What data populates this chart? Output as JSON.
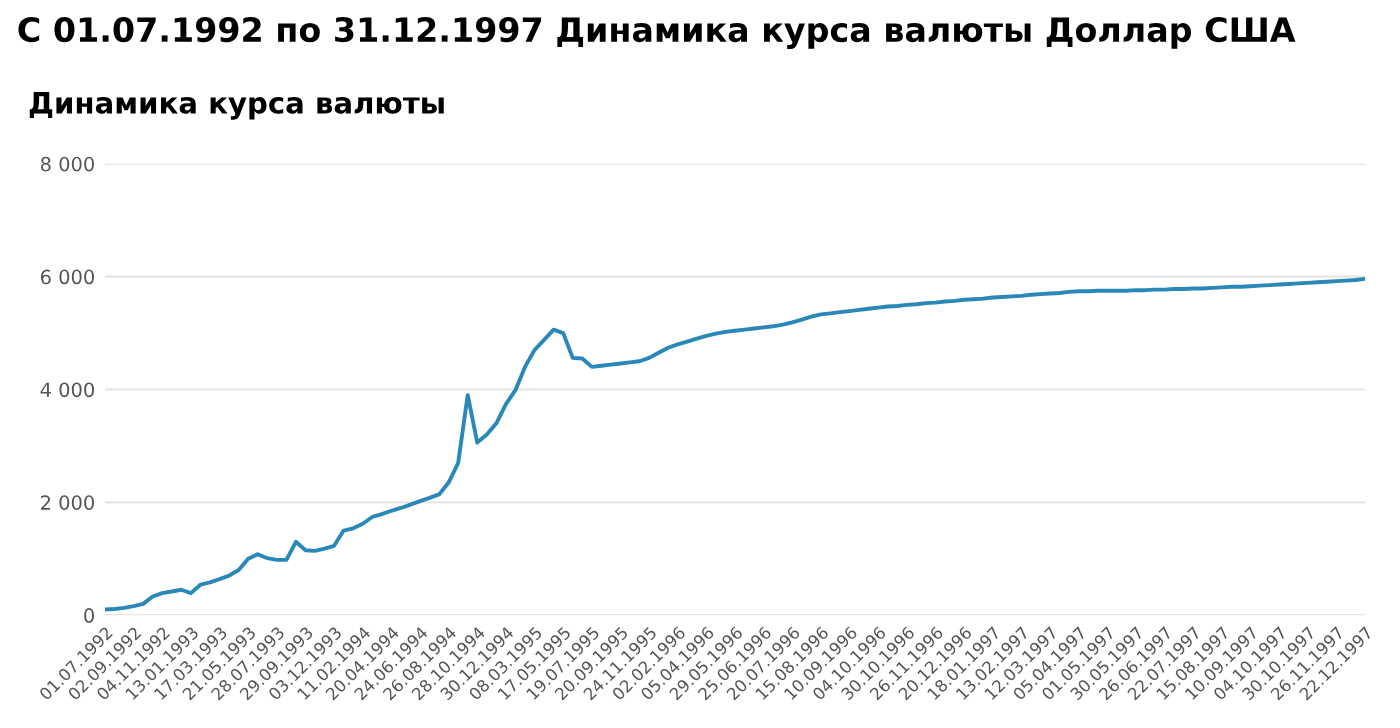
{
  "chart_data": {
    "type": "line",
    "title": "С 01.07.1992 по 31.12.1997 Динамика курса валюты Доллар США",
    "subtitle": "Динамика курса валюты",
    "categories": [
      "01.07.1992",
      null,
      null,
      "02.09.1992",
      null,
      null,
      "04.11.1992",
      null,
      null,
      "13.01.1993",
      null,
      null,
      "17.03.1993",
      null,
      null,
      "21.05.1993",
      null,
      null,
      "28.07.1993",
      null,
      null,
      "29.09.1993",
      null,
      null,
      "03.12.1993",
      null,
      null,
      "11.02.1994",
      null,
      null,
      "20.04.1994",
      null,
      null,
      "24.06.1994",
      null,
      null,
      "26.08.1994",
      null,
      null,
      "28.10.1994",
      null,
      null,
      "30.12.1994",
      null,
      null,
      "08.03.1995",
      null,
      null,
      "17.05.1995",
      null,
      null,
      "19.07.1995",
      null,
      null,
      "20.09.1995",
      null,
      null,
      "24.11.1995",
      null,
      null,
      "02.02.1996",
      null,
      null,
      "05.04.1996",
      null,
      null,
      "29.05.1996",
      null,
      null,
      "25.06.1996",
      null,
      null,
      "20.07.1996",
      null,
      null,
      "15.08.1996",
      null,
      null,
      "10.09.1996",
      null,
      null,
      "04.10.1996",
      null,
      null,
      "30.10.1996",
      null,
      null,
      "26.11.1996",
      null,
      null,
      "20.12.1996",
      null,
      null,
      "18.01.1997",
      null,
      null,
      "13.02.1997",
      null,
      null,
      "12.03.1997",
      null,
      null,
      "05.04.1997",
      null,
      null,
      "01.05.1997",
      null,
      null,
      "30.05.1997",
      null,
      null,
      "26.06.1997",
      null,
      null,
      "22.07.1997",
      null,
      null,
      "15.08.1997",
      null,
      null,
      "10.09.1997",
      null,
      null,
      "04.10.1997",
      null,
      null,
      "30.10.1997",
      null,
      null,
      "26.11.1997",
      null,
      null,
      "22.12.1997"
    ],
    "series": [
      {
        "color": "#2a88b8",
        "values": [
          100,
          110,
          130,
          160,
          200,
          330,
          390,
          420,
          450,
          390,
          540,
          580,
          640,
          700,
          800,
          1000,
          1080,
          1010,
          980,
          980,
          1300,
          1150,
          1140,
          1180,
          1230,
          1500,
          1540,
          1620,
          1740,
          1790,
          1850,
          1900,
          1960,
          2020,
          2080,
          2140,
          2350,
          2700,
          3900,
          3060,
          3200,
          3400,
          3740,
          3990,
          4400,
          4700,
          4880,
          5060,
          5000,
          4560,
          4550,
          4400,
          4420,
          4440,
          4460,
          4480,
          4500,
          4560,
          4650,
          4740,
          4800,
          4850,
          4900,
          4950,
          4990,
          5020,
          5040,
          5060,
          5080,
          5100,
          5120,
          5150,
          5190,
          5240,
          5290,
          5330,
          5350,
          5370,
          5390,
          5410,
          5430,
          5450,
          5470,
          5480,
          5500,
          5510,
          5530,
          5540,
          5560,
          5570,
          5590,
          5600,
          5610,
          5630,
          5640,
          5650,
          5660,
          5680,
          5690,
          5700,
          5710,
          5730,
          5740,
          5740,
          5750,
          5750,
          5750,
          5750,
          5760,
          5760,
          5770,
          5770,
          5780,
          5780,
          5790,
          5790,
          5800,
          5810,
          5820,
          5820,
          5830,
          5840,
          5850,
          5860,
          5870,
          5880,
          5890,
          5900,
          5910,
          5920,
          5930,
          5940,
          5960
        ]
      }
    ],
    "ylim": [
      0,
      8000
    ],
    "yticks": [
      {
        "value": 0,
        "label": "0"
      },
      {
        "value": 2000,
        "label": "2 000"
      },
      {
        "value": 4000,
        "label": "4 000"
      },
      {
        "value": 6000,
        "label": "6 000"
      },
      {
        "value": 8000,
        "label": "8 000"
      }
    ],
    "grid": "y",
    "legend": false,
    "marker": "none",
    "line_style": "solid"
  }
}
